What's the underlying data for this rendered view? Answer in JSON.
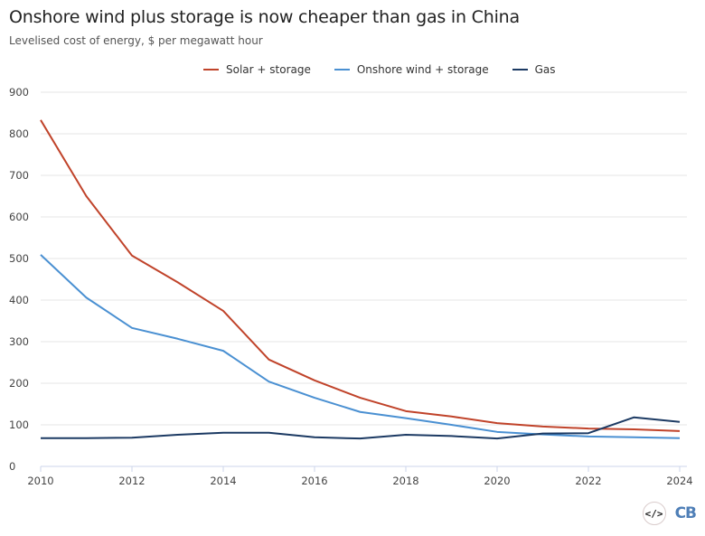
{
  "chart_data": {
    "type": "line",
    "title": "Onshore wind plus storage is now cheaper than gas in China",
    "subtitle": "Levelised cost of energy, $ per megawatt hour",
    "xlabel": "",
    "ylabel": "",
    "x": [
      2010,
      2011,
      2012,
      2013,
      2014,
      2015,
      2016,
      2017,
      2018,
      2019,
      2020,
      2021,
      2022,
      2023,
      2024
    ],
    "xlim": [
      2010,
      2024
    ],
    "ylim": [
      0,
      900
    ],
    "x_ticks": [
      "2010",
      "2012",
      "2014",
      "2016",
      "2018",
      "2020",
      "2022",
      "2024"
    ],
    "y_ticks": [
      "0",
      "100",
      "200",
      "300",
      "400",
      "500",
      "600",
      "700",
      "800",
      "900"
    ],
    "grid": "horizontal",
    "legend_position": "top-center",
    "series": [
      {
        "name": "Solar + storage",
        "color": "#c0432a",
        "values": [
          833,
          650,
          507,
          443,
          374,
          257,
          207,
          165,
          133,
          120,
          104,
          96,
          91,
          89,
          85
        ]
      },
      {
        "name": "Onshore wind + storage",
        "color": "#4a90d2",
        "values": [
          509,
          406,
          333,
          307,
          278,
          204,
          165,
          131,
          116,
          100,
          83,
          77,
          72,
          70,
          68
        ]
      },
      {
        "name": "Gas",
        "color": "#1c3a63",
        "values": [
          68,
          68,
          69,
          76,
          81,
          81,
          70,
          67,
          76,
          73,
          67,
          79,
          80,
          118,
          107
        ]
      }
    ]
  },
  "footer": {
    "embed_icon": "code-embed-icon",
    "embed_label": "</>",
    "logo_text": "CB"
  }
}
